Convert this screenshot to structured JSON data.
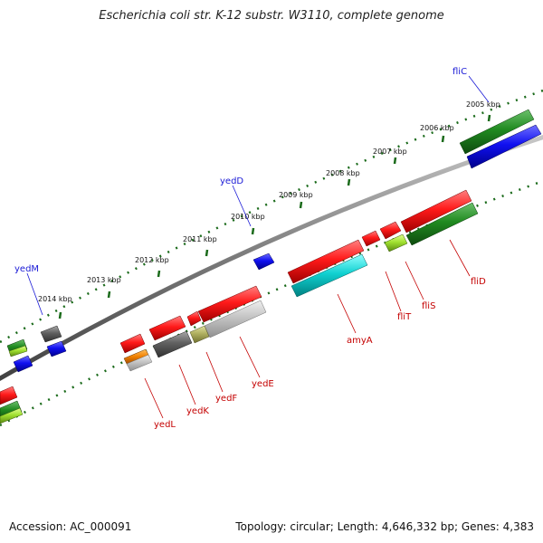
{
  "title": "Escherichia coli str. K-12 substr. W3110, complete genome",
  "footer": {
    "accession": "Accession: AC_000091",
    "summary": "Topology: circular; Length: 4,646,332 bp; Genes: 4,383"
  },
  "ticks": [
    "2005 kbp",
    "2006 kbp",
    "2007 kbp",
    "2008 kbp",
    "2009 kbp",
    "2010 kbp",
    "2011 kbp",
    "2012 kbp",
    "2013 kbp",
    "2014 kbp"
  ],
  "gene_labels": {
    "fliC": "fliC",
    "yedD": "yedD",
    "yedM": "yedM",
    "fliD": "fliD",
    "fliS": "fliS",
    "fliT": "fliT",
    "amyA": "amyA",
    "yedE": "yedE",
    "yedF": "yedF",
    "yedK": "yedK",
    "yedL": "yedL"
  },
  "colors": {
    "red": "#e01010",
    "green": "#1f7a1f",
    "blue": "#1010e0",
    "cyan": "#10c8c8",
    "grey": "#606060",
    "lightgrey": "#c0c0c0",
    "lime": "#a0e040",
    "orange": "#f08000",
    "olive": "#b0b060",
    "backbone": "#808080",
    "tick": "#1a6a1a"
  }
}
